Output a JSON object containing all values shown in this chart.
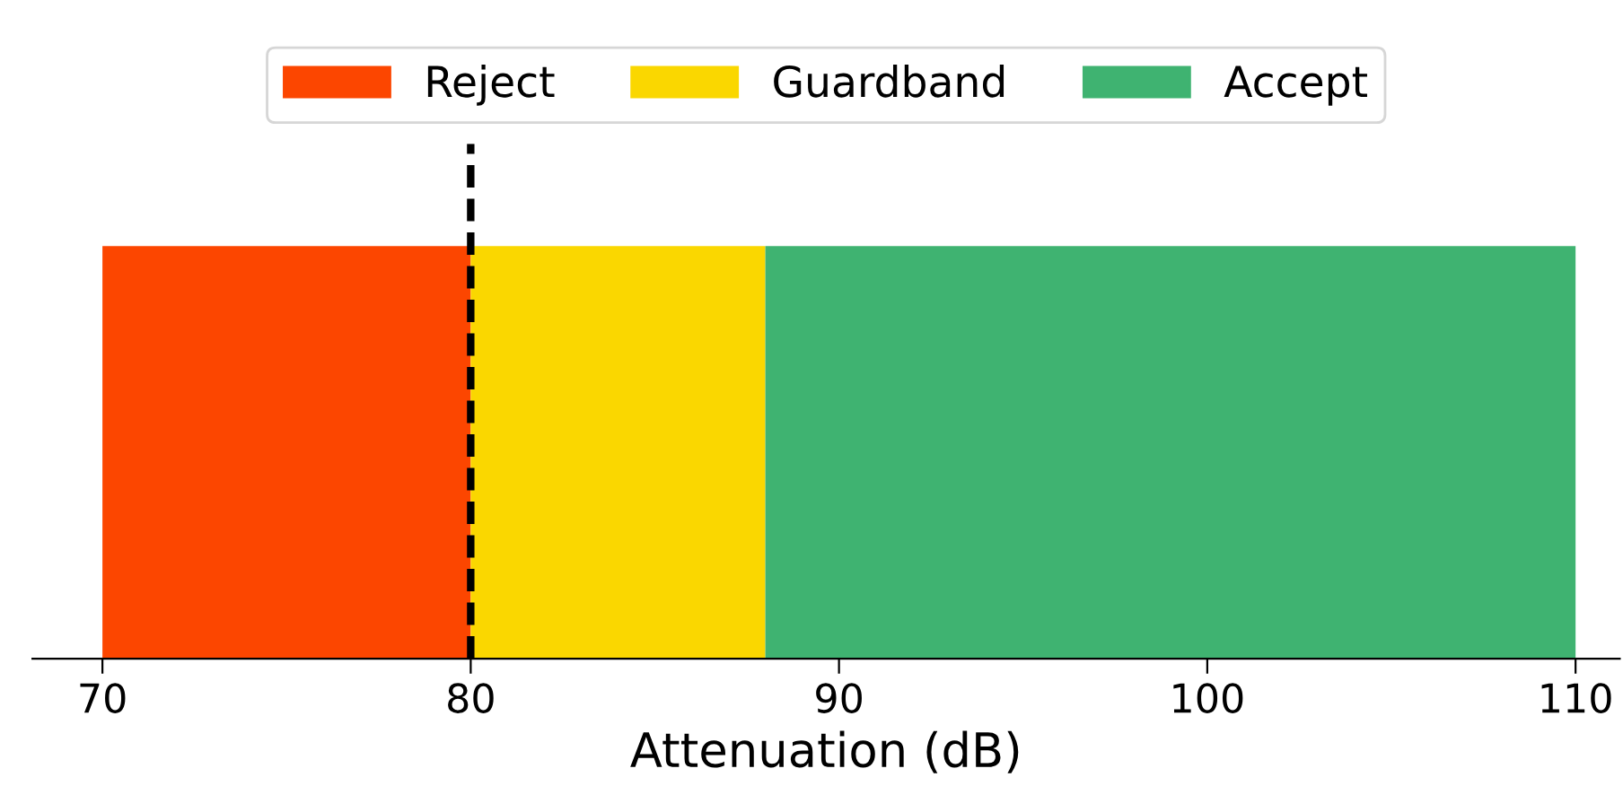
{
  "chart_data": {
    "type": "bar",
    "orientation": "horizontal",
    "categories": [
      null
    ],
    "series": [
      {
        "name": "Reject",
        "color": "#fc4600",
        "base": [
          70
        ],
        "values": [
          10
        ]
      },
      {
        "name": "Guardband",
        "color": "#fad700",
        "base": [
          80
        ],
        "values": [
          8
        ]
      },
      {
        "name": "Accept",
        "color": "#3fb371",
        "base": [
          88
        ],
        "values": [
          22
        ]
      }
    ],
    "xlabel": "Attenuation (dB)",
    "xlim": [
      68.1,
      111.2
    ],
    "xticks": [
      70,
      80,
      90,
      100,
      110
    ],
    "ref_lines": [
      {
        "axis": "x",
        "value": 80,
        "color": "#000000",
        "line_style": "dashed"
      }
    ],
    "legend": "top",
    "grid": false,
    "tick_labels": "x"
  }
}
